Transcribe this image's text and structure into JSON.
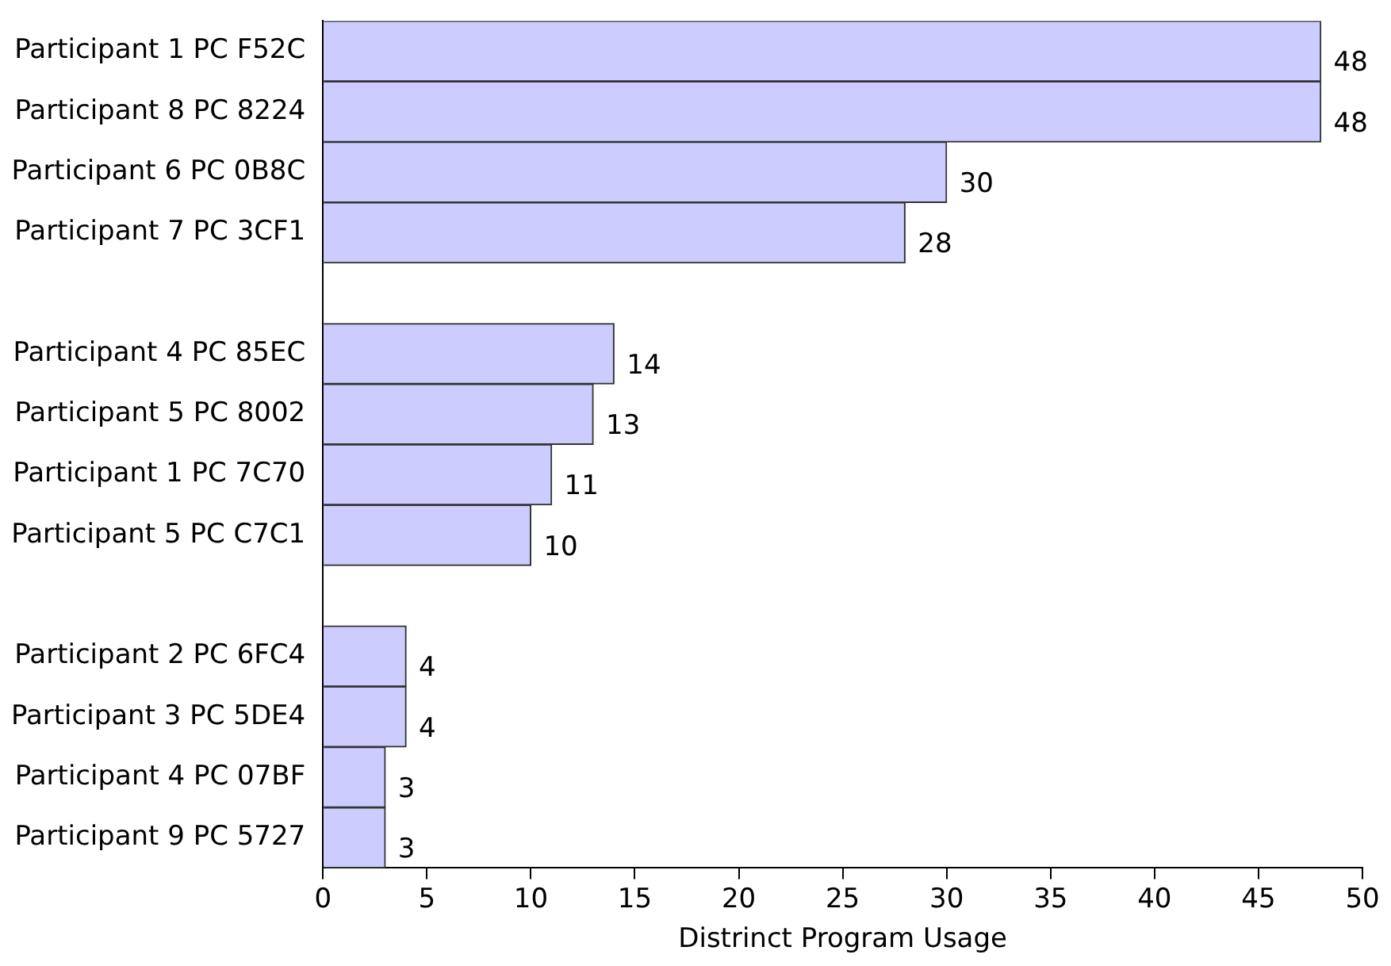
{
  "chart_data": {
    "type": "bar",
    "orientation": "horizontal",
    "xlabel": "Distrinct Program Usage",
    "categories": [
      "Participant 1 PC F52C",
      "Participant 8 PC 8224",
      "Participant 6 PC 0B8C",
      "Participant 7 PC 3CF1",
      null,
      "Participant 4 PC 85EC",
      "Participant 5 PC 8002",
      "Participant 1 PC 7C70",
      "Participant 5 PC C7C1",
      null,
      "Participant 2 PC 6FC4",
      "Participant 3 PC 5DE4",
      "Participant 4 PC 07BF",
      "Participant 9 PC 5727"
    ],
    "values": [
      48,
      48,
      30,
      28,
      null,
      14,
      13,
      11,
      10,
      null,
      4,
      4,
      3,
      3
    ],
    "color": "#ccccff",
    "xlim": [
      0,
      50
    ],
    "xticks": [
      0,
      5,
      10,
      15,
      20,
      25,
      30,
      35,
      40,
      45,
      50
    ],
    "data_labels": true,
    "grid": false,
    "legend": false
  }
}
